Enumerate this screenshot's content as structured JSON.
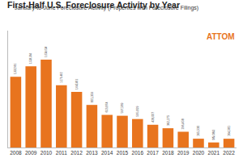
{
  "chart_data": {
    "type": "bar",
    "title": "First-Half U.S. Foreclosure Activity by Year",
    "subtitle": "January-to-June Foreclosure Activity (Properties with Foreclosure Filings)",
    "annotations": [
      "ATTOM"
    ],
    "categories": [
      "2008",
      "2009",
      "2010",
      "2011",
      "2012",
      "2013",
      "2014",
      "2015",
      "2016",
      "2017",
      "2018",
      "2019",
      "2020",
      "2021",
      "2022"
    ],
    "values": [
      1332991,
      1528364,
      1654634,
      1170402,
      1045801,
      801359,
      613874,
      597589,
      535829,
      428007,
      362275,
      296458,
      165530,
      95082,
      164581
    ],
    "value_labels": [
      "1,332,991",
      "1,528,364",
      "1,654,634",
      "1,170,402",
      "1,045,801",
      "801,359",
      "613,874",
      "597,589",
      "535,829",
      "428,007",
      "362,275",
      "296,458",
      "165,530",
      "95,082",
      "164,581"
    ],
    "color": "#e8741e",
    "ylim": [
      0,
      2200000
    ],
    "yticks": [
      0
    ],
    "grid": false,
    "data_labels": true,
    "tick_labels": "x"
  }
}
